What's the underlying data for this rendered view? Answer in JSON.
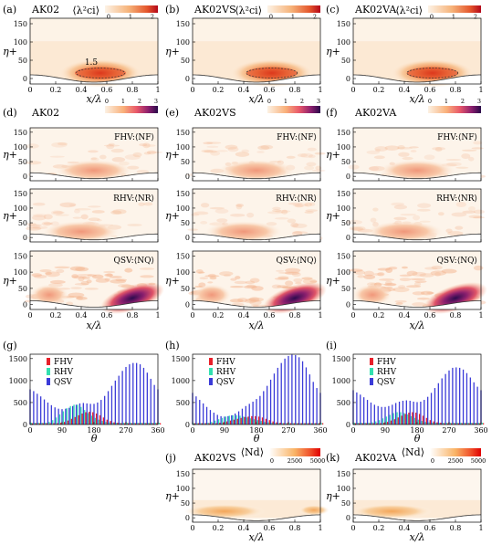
{
  "colors": {
    "seq_orange_low": "#fdf1e3",
    "seq_orange_mid": "#f4a15a",
    "seq_orange_high": "#c8101a",
    "magma_low": "#fcf0df",
    "magma_mid": "#e8586a",
    "magma_high": "#2c0b4e",
    "fhv_color": "#e8202a",
    "rhv_color": "#33e0b0",
    "qsv_color": "#3b3bd8",
    "wave_line": "#333333"
  },
  "row1": {
    "panels": [
      {
        "label": "(a)",
        "title": "AK02",
        "cblabel": "⟨λ²ci⟩",
        "cbticks": [
          "0",
          "1",
          "2"
        ],
        "contour_label": "1.5"
      },
      {
        "label": "(b)",
        "title": "AK02VS",
        "cblabel": "⟨λ²ci⟩",
        "cbticks": [
          "0",
          "1",
          "2"
        ],
        "contour_label": ""
      },
      {
        "label": "(c)",
        "title": "AK02VA",
        "cblabel": "⟨λ²ci⟩",
        "cbticks": [
          "0",
          "1",
          "2"
        ],
        "contour_label": ""
      }
    ],
    "xticks": [
      "0",
      "0.2",
      "0.4",
      "0.6",
      "0.8",
      "1"
    ],
    "yticks": [
      "0",
      "50",
      "100",
      "150"
    ],
    "xlabel": "x/λ",
    "ylabel": "η+"
  },
  "row2": {
    "panels": [
      {
        "label": "(d)",
        "title": "AK02"
      },
      {
        "label": "(e)",
        "title": "AK02VS"
      },
      {
        "label": "(f)",
        "title": "AK02VA"
      }
    ],
    "cbticks": [
      "0",
      "1",
      "2",
      "3"
    ],
    "sub_labels": [
      "FHV:⟨NF⟩",
      "RHV:⟨NR⟩",
      "QSV:⟨NQ⟩"
    ],
    "xticks": [
      "0",
      "0.2",
      "0.4",
      "0.6",
      "0.8",
      "1"
    ],
    "yticks": [
      "0",
      "50",
      "100",
      "150"
    ],
    "xlabel": "x/λ",
    "ylabel": "η+"
  },
  "row3": {
    "panels": [
      {
        "label": "(g)"
      },
      {
        "label": "(h)"
      },
      {
        "label": "(i)"
      }
    ],
    "legend": [
      "FHV",
      "RHV",
      "QSV"
    ],
    "xticks": [
      "0",
      "90",
      "180",
      "270",
      "360"
    ],
    "yticks": [
      "0",
      "500",
      "1000",
      "1500"
    ],
    "xlabel": "θ"
  },
  "row4": {
    "panels": [
      {
        "label": "(j)",
        "title": "AK02VS",
        "cblabel": "⟨Nd⟩"
      },
      {
        "label": "(k)",
        "title": "AK02VA",
        "cblabel": "⟨Nd⟩"
      }
    ],
    "cbticks": [
      "0",
      "2500",
      "5000"
    ],
    "xticks": [
      "0",
      "0.2",
      "0.4",
      "0.6",
      "0.8",
      "1"
    ],
    "yticks": [
      "0",
      "50",
      "100",
      "150"
    ],
    "xlabel": "x/λ",
    "ylabel": "η+"
  },
  "chart_data": [
    {
      "type": "bar",
      "panel": "(g)",
      "x": [
        0,
        10,
        20,
        30,
        40,
        50,
        60,
        70,
        80,
        90,
        100,
        110,
        120,
        130,
        140,
        150,
        160,
        170,
        180,
        190,
        200,
        210,
        220,
        230,
        240,
        250,
        260,
        270,
        280,
        290,
        300,
        310,
        320,
        330,
        340,
        350,
        360
      ],
      "xlabel": "θ",
      "xlim": [
        0,
        360
      ],
      "ylim": [
        0,
        1600
      ],
      "series": [
        {
          "name": "QSV",
          "values": [
            800,
            760,
            700,
            640,
            570,
            500,
            440,
            390,
            360,
            350,
            360,
            380,
            420,
            450,
            480,
            490,
            480,
            470,
            470,
            500,
            560,
            650,
            760,
            880,
            1000,
            1110,
            1220,
            1310,
            1370,
            1400,
            1400,
            1370,
            1290,
            1180,
            1040,
            900,
            800
          ]
        },
        {
          "name": "RHV",
          "values": [
            40,
            40,
            40,
            40,
            40,
            60,
            100,
            160,
            230,
            300,
            370,
            420,
            450,
            450,
            400,
            330,
            260,
            200,
            150,
            110,
            80,
            60,
            50,
            40,
            40,
            40,
            40,
            40,
            40,
            40,
            40,
            40,
            40,
            40,
            40,
            40,
            40
          ]
        },
        {
          "name": "FHV",
          "values": [
            30,
            30,
            30,
            30,
            30,
            30,
            30,
            30,
            40,
            60,
            90,
            130,
            170,
            210,
            250,
            280,
            290,
            280,
            250,
            210,
            160,
            110,
            80,
            50,
            40,
            30,
            30,
            30,
            30,
            30,
            30,
            30,
            30,
            30,
            30,
            30,
            30
          ]
        }
      ]
    },
    {
      "type": "bar",
      "panel": "(h)",
      "x": [
        0,
        10,
        20,
        30,
        40,
        50,
        60,
        70,
        80,
        90,
        100,
        110,
        120,
        130,
        140,
        150,
        160,
        170,
        180,
        190,
        200,
        210,
        220,
        230,
        240,
        250,
        260,
        270,
        280,
        290,
        300,
        310,
        320,
        330,
        340,
        350,
        360
      ],
      "xlabel": "θ",
      "xlim": [
        0,
        360
      ],
      "ylim": [
        0,
        1600
      ],
      "series": [
        {
          "name": "QSV",
          "values": [
            720,
            640,
            560,
            480,
            400,
            330,
            270,
            220,
            190,
            180,
            190,
            210,
            250,
            300,
            360,
            420,
            470,
            520,
            580,
            650,
            760,
            880,
            1020,
            1160,
            1290,
            1400,
            1500,
            1560,
            1590,
            1580,
            1530,
            1440,
            1300,
            1140,
            970,
            830,
            720
          ]
        },
        {
          "name": "RHV",
          "values": [
            30,
            30,
            30,
            30,
            40,
            60,
            90,
            120,
            150,
            180,
            200,
            210,
            210,
            200,
            180,
            160,
            140,
            120,
            100,
            80,
            60,
            50,
            40,
            30,
            30,
            30,
            30,
            30,
            30,
            30,
            30,
            30,
            30,
            30,
            30,
            30,
            30
          ]
        },
        {
          "name": "FHV",
          "values": [
            30,
            30,
            30,
            30,
            30,
            30,
            30,
            40,
            50,
            70,
            90,
            110,
            130,
            150,
            170,
            180,
            190,
            190,
            180,
            160,
            130,
            100,
            70,
            50,
            40,
            30,
            30,
            30,
            30,
            30,
            30,
            30,
            30,
            30,
            30,
            30,
            30
          ]
        }
      ]
    },
    {
      "type": "bar",
      "panel": "(i)",
      "x": [
        0,
        10,
        20,
        30,
        40,
        50,
        60,
        70,
        80,
        90,
        100,
        110,
        120,
        130,
        140,
        150,
        160,
        170,
        180,
        190,
        200,
        210,
        220,
        230,
        240,
        250,
        260,
        270,
        280,
        290,
        300,
        310,
        320,
        330,
        340,
        350,
        360
      ],
      "xlabel": "θ",
      "xlim": [
        0,
        360
      ],
      "ylim": [
        0,
        1600
      ],
      "series": [
        {
          "name": "QSV",
          "values": [
            780,
            730,
            680,
            620,
            560,
            500,
            450,
            420,
            400,
            400,
            420,
            450,
            490,
            520,
            540,
            550,
            540,
            520,
            510,
            520,
            560,
            630,
            720,
            830,
            940,
            1050,
            1150,
            1230,
            1290,
            1300,
            1290,
            1250,
            1170,
            1070,
            960,
            860,
            780
          ]
        },
        {
          "name": "RHV",
          "values": [
            40,
            40,
            40,
            40,
            40,
            50,
            70,
            100,
            140,
            180,
            220,
            260,
            280,
            280,
            260,
            230,
            190,
            150,
            110,
            80,
            60,
            50,
            40,
            40,
            40,
            40,
            40,
            40,
            40,
            40,
            40,
            40,
            40,
            40,
            40,
            40,
            40
          ]
        },
        {
          "name": "FHV",
          "values": [
            30,
            30,
            30,
            30,
            30,
            30,
            30,
            30,
            40,
            60,
            90,
            120,
            160,
            200,
            240,
            270,
            280,
            270,
            240,
            200,
            150,
            100,
            70,
            50,
            40,
            30,
            30,
            30,
            30,
            30,
            30,
            30,
            30,
            30,
            30,
            30,
            30
          ]
        }
      ]
    }
  ]
}
